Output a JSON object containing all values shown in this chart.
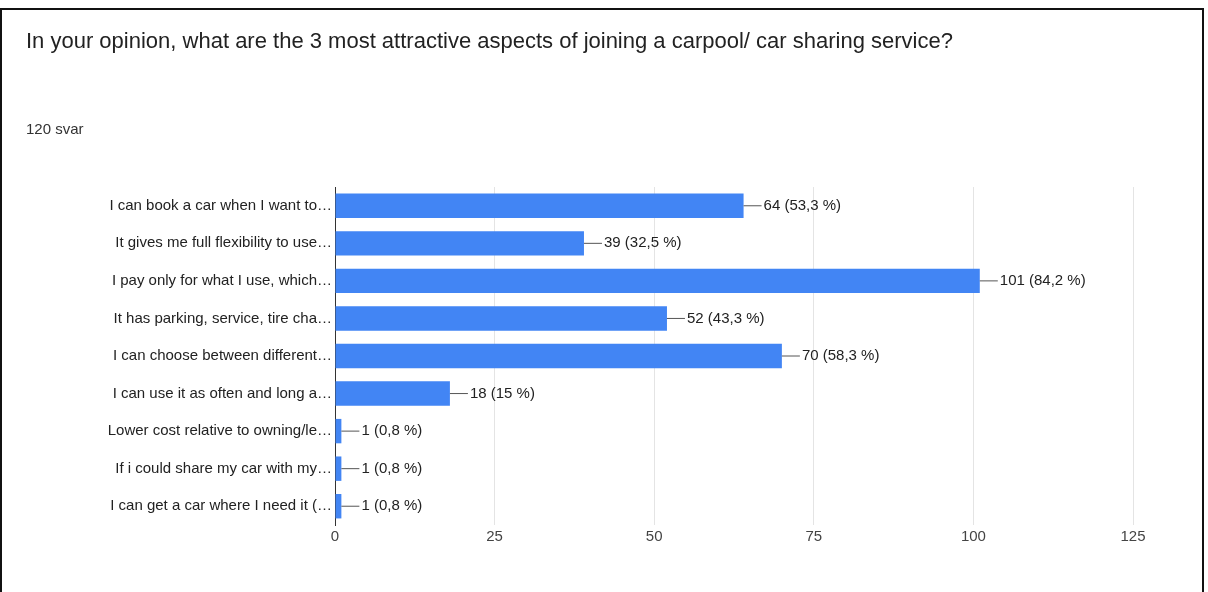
{
  "chart_data": {
    "type": "bar",
    "orientation": "horizontal",
    "title": "In your opinion, what are the 3 most attractive aspects of joining a carpool/ car sharing service?",
    "subtitle": "120 svar",
    "categories": [
      "I can book a car when I want to…",
      "It gives me full flexibility to use…",
      "I pay only for what I use, which…",
      "It has parking, service, tire cha…",
      "I can choose between different…",
      "I can use it as often and long a…",
      "Lower cost relative to owning/le…",
      "If i could share my car with my…",
      "I can get a car where I need it (…"
    ],
    "values": [
      64,
      39,
      101,
      52,
      70,
      18,
      1,
      1,
      1
    ],
    "value_labels": [
      "64 (53,3 %)",
      "39 (32,5 %)",
      "101 (84,2 %)",
      "52 (43,3 %)",
      "70 (58,3 %)",
      "18 (15 %)",
      "1 (0,8 %)",
      "1 (0,8 %)",
      "1 (0,8 %)"
    ],
    "color": "#4285f4",
    "xlim": [
      0,
      125
    ],
    "xticks": [
      0,
      25,
      50,
      75,
      100,
      125
    ],
    "grid": "x",
    "legend": false
  }
}
